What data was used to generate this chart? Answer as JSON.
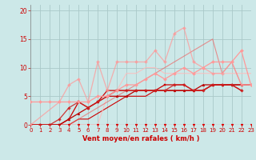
{
  "xlabel": "Vent moyen/en rafales ( km/h )",
  "background_color": "#cce8e8",
  "grid_color": "#aac8c8",
  "x_ticks": [
    0,
    1,
    2,
    3,
    4,
    5,
    6,
    7,
    8,
    9,
    10,
    11,
    12,
    13,
    14,
    15,
    16,
    17,
    18,
    19,
    20,
    21,
    22,
    23
  ],
  "y_ticks": [
    0,
    5,
    10,
    15,
    20
  ],
  "ylim": [
    0,
    21
  ],
  "xlim": [
    0,
    23
  ],
  "lines": [
    {
      "x": [
        0,
        1,
        2,
        3,
        4,
        5,
        6,
        7,
        8,
        9,
        10,
        11,
        12,
        13,
        14,
        15,
        16,
        17,
        18,
        19,
        20,
        21,
        22,
        23
      ],
      "y": [
        0,
        0,
        0,
        0,
        0,
        0,
        0,
        0,
        0,
        0,
        0,
        0,
        0,
        0,
        0,
        0,
        0,
        0,
        0,
        0,
        0,
        0,
        0,
        0
      ],
      "color": "#dd0000",
      "alpha": 1.0,
      "lw": 0.8,
      "marker": "v",
      "ms": 2.0
    },
    {
      "x": [
        0,
        2,
        3,
        4,
        5,
        6,
        7,
        8,
        9,
        10,
        11,
        12,
        13,
        14,
        15,
        16,
        17,
        18,
        19,
        20,
        21,
        22
      ],
      "y": [
        0,
        0,
        0,
        0,
        0,
        0,
        0,
        0,
        0,
        0,
        0,
        0,
        0,
        0,
        0,
        0,
        0,
        0,
        0,
        0,
        0,
        0
      ],
      "color": "#dd0000",
      "alpha": 1.0,
      "lw": 0.7,
      "marker": "v",
      "ms": 1.8
    },
    {
      "x": [
        0,
        1,
        2,
        3,
        4,
        5,
        6,
        7,
        8,
        9,
        10,
        11,
        12,
        13,
        14,
        15,
        16,
        17,
        18,
        19,
        20,
        21,
        22
      ],
      "y": [
        0,
        0,
        0,
        0,
        1,
        4,
        3,
        4,
        6,
        6,
        6,
        6,
        6,
        6,
        7,
        7,
        7,
        6,
        6,
        7,
        7,
        7,
        6
      ],
      "color": "#cc0000",
      "alpha": 1.0,
      "lw": 0.9,
      "marker": "s",
      "ms": 1.8
    },
    {
      "x": [
        0,
        1,
        2,
        3,
        4,
        5,
        6,
        7,
        8,
        9,
        10,
        11,
        12,
        13,
        14,
        15,
        16,
        17,
        18,
        19,
        20,
        21,
        22
      ],
      "y": [
        0,
        0,
        0,
        0,
        1,
        2,
        3,
        4,
        5,
        5,
        5,
        6,
        6,
        6,
        6,
        6,
        6,
        6,
        7,
        7,
        7,
        7,
        7
      ],
      "color": "#bb0000",
      "alpha": 1.0,
      "lw": 0.9,
      "marker": "^",
      "ms": 2.0
    },
    {
      "x": [
        0,
        1,
        2,
        3,
        4,
        5,
        6,
        7,
        8,
        9,
        10,
        11,
        12,
        13,
        14,
        15,
        16,
        17,
        18,
        19,
        20,
        21,
        22
      ],
      "y": [
        0,
        0,
        0,
        1,
        3,
        4,
        3,
        4,
        5,
        6,
        6,
        6,
        6,
        6,
        6,
        7,
        7,
        6,
        6,
        7,
        7,
        7,
        6
      ],
      "color": "#cc2222",
      "alpha": 0.9,
      "lw": 0.9,
      "marker": "D",
      "ms": 1.8
    },
    {
      "x": [
        0,
        1,
        2,
        3,
        4,
        5,
        6,
        7,
        8,
        9,
        10,
        11,
        12,
        13,
        14,
        15,
        16,
        17,
        18,
        19,
        20,
        21,
        22,
        23
      ],
      "y": [
        0,
        0,
        0,
        0,
        0,
        1,
        1,
        2,
        3,
        4,
        5,
        5,
        5,
        6,
        6,
        6,
        6,
        6,
        6,
        7,
        7,
        7,
        7,
        7
      ],
      "color": "#cc0000",
      "alpha": 1.0,
      "lw": 0.8,
      "marker": null,
      "ms": 0
    },
    {
      "x": [
        0,
        1,
        2,
        3,
        4,
        5,
        6,
        7,
        8,
        9,
        10,
        11,
        12,
        13,
        14,
        15,
        16,
        17,
        18,
        19,
        20,
        21,
        22,
        23
      ],
      "y": [
        4,
        4,
        4,
        4,
        4,
        4,
        4,
        5,
        5,
        6,
        7,
        7,
        8,
        9,
        8,
        9,
        10,
        9,
        10,
        11,
        11,
        11,
        13,
        7
      ],
      "color": "#ff9999",
      "alpha": 1.0,
      "lw": 0.9,
      "marker": "D",
      "ms": 2.0
    },
    {
      "x": [
        0,
        3,
        4,
        5,
        6,
        7,
        8,
        9,
        10,
        11,
        12,
        13,
        14,
        15,
        16,
        17,
        18,
        19,
        20,
        21,
        22,
        23
      ],
      "y": [
        0,
        4,
        7,
        8,
        4,
        11,
        6,
        11,
        11,
        11,
        11,
        13,
        11,
        16,
        17,
        11,
        10,
        9,
        9,
        11,
        7,
        7
      ],
      "color": "#ff9999",
      "alpha": 0.75,
      "lw": 0.9,
      "marker": "D",
      "ms": 2.0
    },
    {
      "x": [
        0,
        1,
        2,
        3,
        4,
        5,
        6,
        7,
        8,
        9,
        10,
        11,
        12,
        13,
        14,
        15,
        16,
        17,
        18,
        19,
        20,
        21,
        22,
        23
      ],
      "y": [
        0,
        0,
        0,
        0,
        0,
        0,
        0,
        0,
        5,
        6,
        9,
        9,
        10,
        10,
        9,
        9,
        9,
        9,
        9,
        9,
        9,
        9,
        9,
        9
      ],
      "color": "#ffbbbb",
      "alpha": 0.85,
      "lw": 0.8,
      "marker": null,
      "ms": 0
    },
    {
      "x": [
        0,
        1,
        2,
        3,
        4,
        5,
        6,
        7,
        8,
        9,
        10,
        11,
        12,
        13,
        14,
        15,
        16,
        17,
        18,
        19,
        20,
        21,
        22,
        23
      ],
      "y": [
        0,
        0,
        0,
        0,
        0,
        1,
        2,
        3,
        4,
        5,
        6,
        7,
        8,
        9,
        10,
        11,
        12,
        13,
        14,
        15,
        9,
        11,
        7,
        7
      ],
      "color": "#ee6666",
      "alpha": 0.7,
      "lw": 0.8,
      "marker": null,
      "ms": 0
    }
  ]
}
